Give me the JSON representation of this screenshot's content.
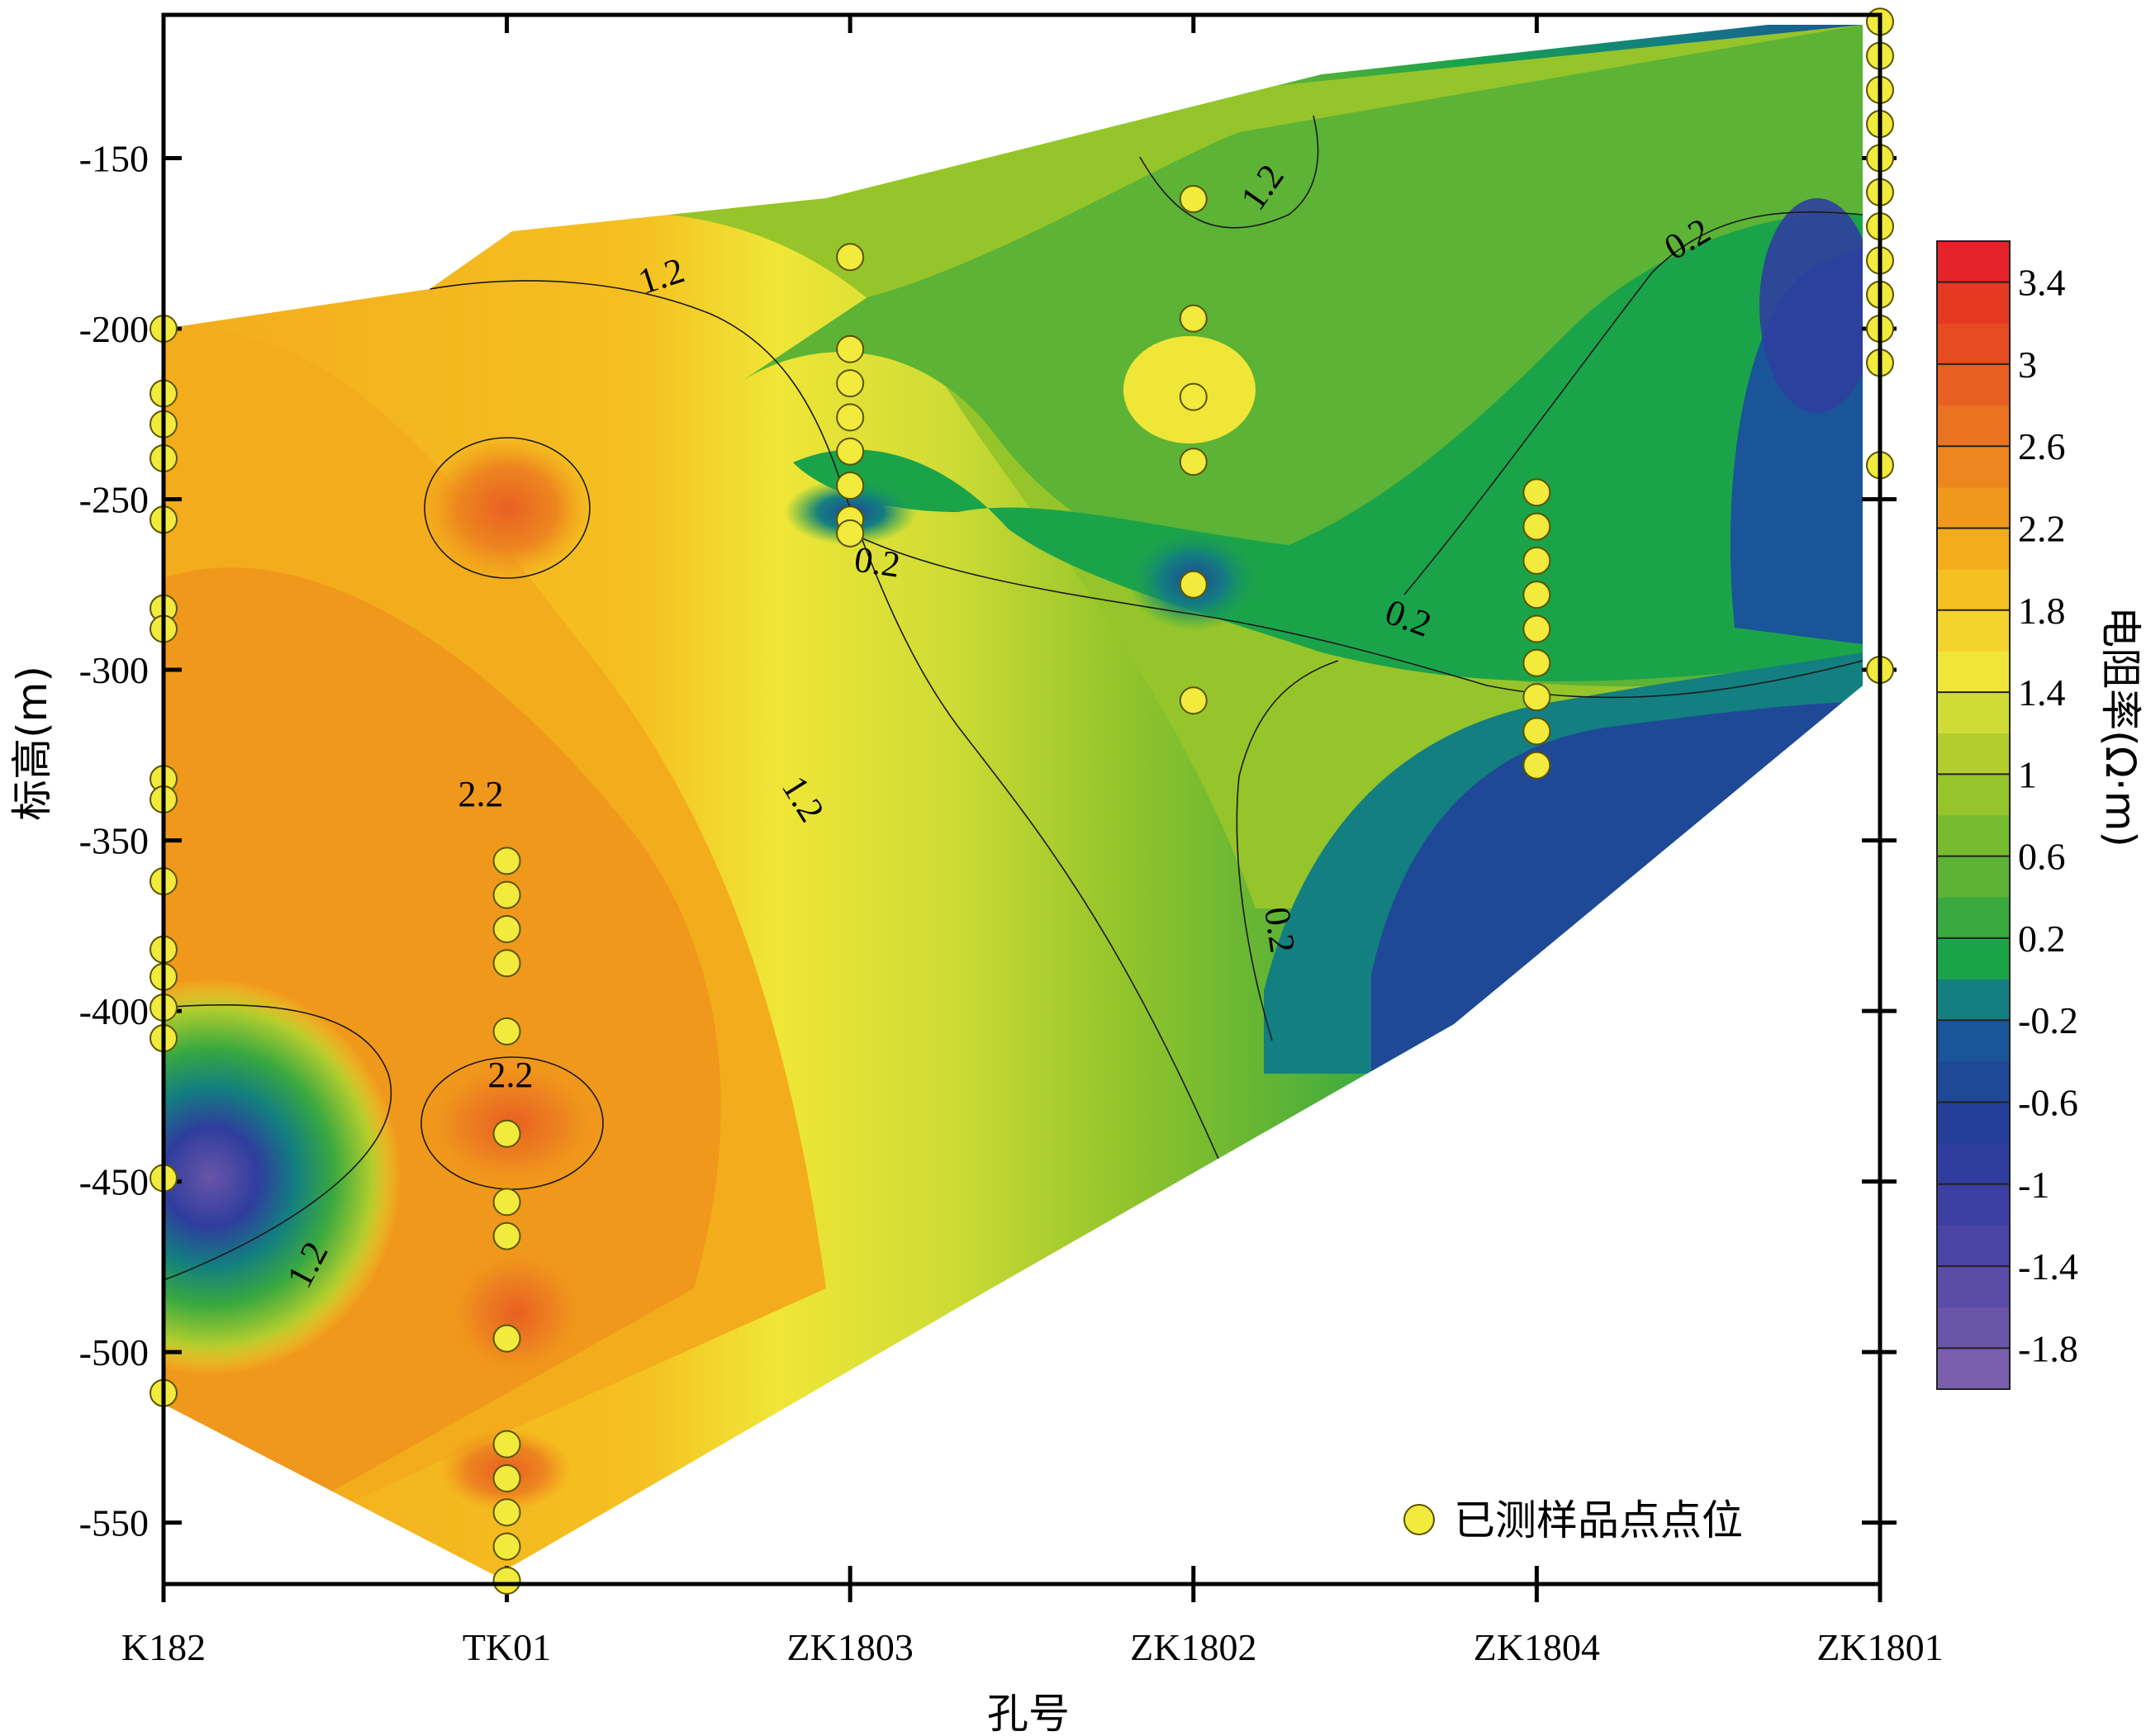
{
  "chart_data": {
    "type": "heatmap",
    "xlabel": "孔号",
    "ylabel": "标高(m)",
    "x_categories": [
      "K182",
      "TK01",
      "ZK1803",
      "ZK1802",
      "ZK1804",
      "ZK1801"
    ],
    "y_ticks": [
      -150,
      -200,
      -250,
      -300,
      -350,
      -400,
      -450,
      -500,
      -550
    ],
    "ylim": [
      -568,
      -108
    ],
    "colorbar": {
      "title": "电阻率(Ω·m)",
      "ticks": [
        "3.4",
        "3",
        "2.6",
        "2.2",
        "1.8",
        "1.4",
        "1",
        "0.6",
        "0.2",
        "-0.2",
        "-0.6",
        "-1",
        "-1.4",
        "-1.8"
      ],
      "range": [
        -2.0,
        3.6
      ],
      "step": 0.2,
      "colors": [
        "#7a5fad",
        "#6a55a8",
        "#5a4ca6",
        "#4a44a4",
        "#3d3fa2",
        "#2f3e9e",
        "#243f9a",
        "#1f4996",
        "#1a5499",
        "#137f80",
        "#1ba34a",
        "#3aa93f",
        "#5cb335",
        "#78bb2f",
        "#95c52b",
        "#b2cd2d",
        "#cfdc35",
        "#f0e637",
        "#f5d32d",
        "#f5c021",
        "#f3ac1c",
        "#f0981b",
        "#ed861f",
        "#ea7321",
        "#e85f22",
        "#e74b22",
        "#e63822",
        "#e4242a"
      ]
    },
    "contour_labels": [
      "1.2",
      "1.2",
      "1.2",
      "1.2",
      "0.2",
      "0.2",
      "0.2",
      "0.2",
      "2.2",
      "2.2"
    ],
    "series": [
      {
        "name": "已测样品点点位",
        "holes": [
          {
            "hole": "K182",
            "y": [
              -200,
              -219,
              -228,
              -238,
              -256,
              -282,
              -288,
              -332,
              -338,
              -362,
              -382,
              -390,
              -399,
              -408,
              -449,
              -512
            ]
          },
          {
            "hole": "TK01",
            "y": [
              -356,
              -366,
              -376,
              -386,
              -406,
              -436,
              -456,
              -466,
              -496,
              -527,
              -537,
              -547,
              -557,
              -567
            ]
          },
          {
            "hole": "ZK1803",
            "y": [
              -179,
              -206,
              -216,
              -226,
              -236,
              -246,
              -256,
              -260
            ]
          },
          {
            "hole": "ZK1802",
            "y": [
              -162,
              -197,
              -220,
              -239,
              -275,
              -309
            ]
          },
          {
            "hole": "ZK1804",
            "y": [
              -248,
              -258,
              -268,
              -278,
              -288,
              -298,
              -308,
              -318,
              -328
            ]
          },
          {
            "hole": "ZK1801",
            "y": [
              -110,
              -120,
              -130,
              -140,
              -150,
              -160,
              -170,
              -180,
              -190,
              -200,
              -210,
              -240,
              -300
            ]
          }
        ]
      }
    ],
    "legend_position": "bottom-right"
  }
}
